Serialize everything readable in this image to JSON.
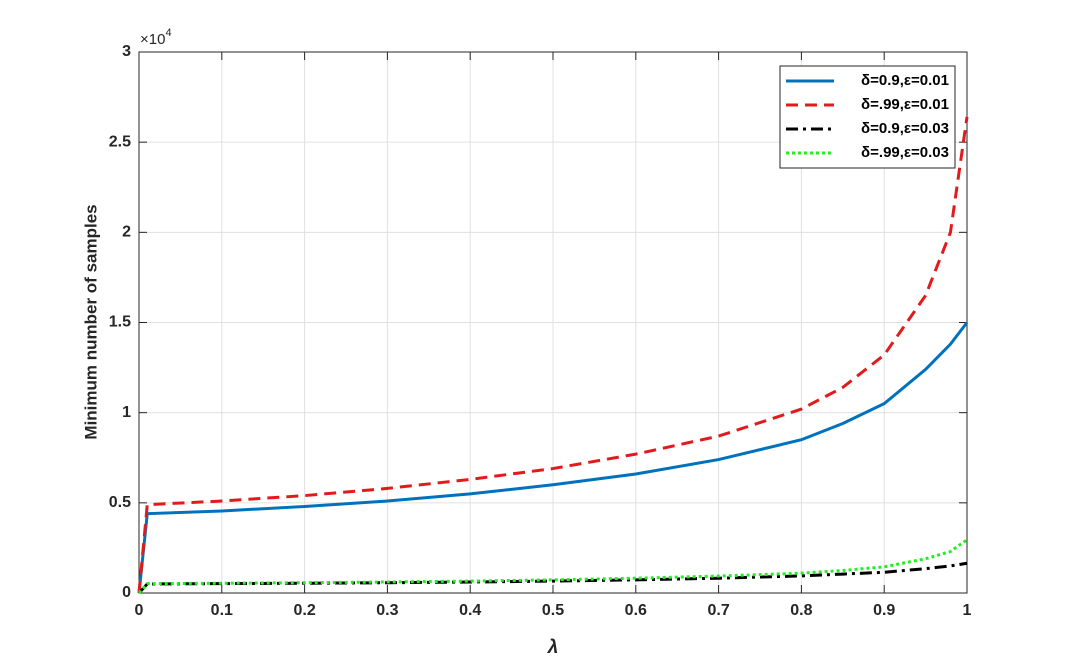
{
  "chart_data": {
    "type": "line",
    "xlabel": "λ",
    "ylabel": "Minimum number of samples",
    "y_multiplier": {
      "base": "×10",
      "exponent": "4"
    },
    "x": [
      0,
      0.01,
      0.1,
      0.2,
      0.3,
      0.4,
      0.5,
      0.6,
      0.7,
      0.8,
      0.85,
      0.9,
      0.95,
      0.98,
      1
    ],
    "series": [
      {
        "name": "δ=0.9,ε=0.01",
        "color": "#0072bd",
        "linestyle": "solid",
        "values": [
          0,
          4400,
          4550,
          4800,
          5100,
          5500,
          6000,
          6600,
          7400,
          8500,
          9400,
          10500,
          12400,
          13800,
          15000
        ]
      },
      {
        "name": "δ=.99,ε=0.01",
        "color": "#e31a1c",
        "linestyle": "dashed",
        "values": [
          0,
          4900,
          5100,
          5400,
          5800,
          6300,
          6900,
          7700,
          8700,
          10200,
          11400,
          13200,
          16500,
          20000,
          26400
        ]
      },
      {
        "name": "δ=0.9,ε=0.03",
        "color": "#000000",
        "linestyle": "dashdot",
        "values": [
          0,
          500,
          520,
          540,
          570,
          610,
          660,
          730,
          820,
          950,
          1050,
          1150,
          1350,
          1500,
          1650
        ]
      },
      {
        "name": "δ=.99,ε=0.03",
        "color": "#22ee22",
        "linestyle": "dotted",
        "values": [
          0,
          520,
          540,
          570,
          610,
          660,
          730,
          820,
          940,
          1100,
          1250,
          1450,
          1900,
          2300,
          2950
        ]
      }
    ],
    "xlim": [
      0,
      1
    ],
    "xticks": [
      0,
      0.1,
      0.2,
      0.3,
      0.4,
      0.5,
      0.6,
      0.7,
      0.8,
      0.9,
      1
    ],
    "ylim": [
      0,
      30000
    ],
    "yticks": [
      0,
      {
        "value": 5000,
        "label": "0.5"
      },
      {
        "value": 10000,
        "label": "1"
      },
      {
        "value": 15000,
        "label": "1.5"
      },
      {
        "value": 20000,
        "label": "2"
      },
      {
        "value": 25000,
        "label": "2.5"
      },
      {
        "value": 30000,
        "label": "3"
      }
    ],
    "grid": true,
    "legend": "northeast"
  }
}
